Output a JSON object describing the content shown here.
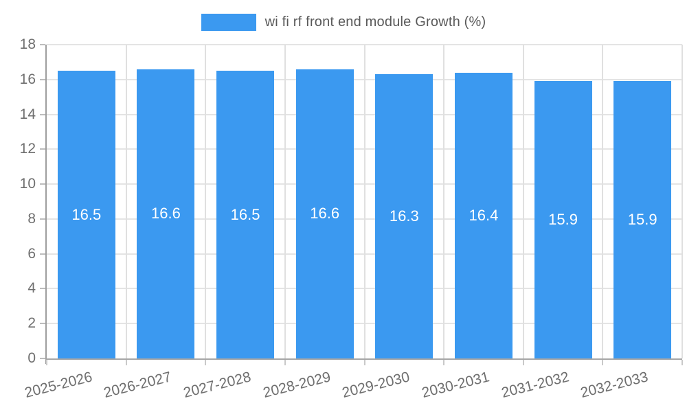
{
  "chart_data": {
    "type": "bar",
    "title": "",
    "legend": [
      "wi fi rf front end module Growth (%)"
    ],
    "legend_position": "top",
    "categories": [
      "2025-2026",
      "2026-2027",
      "2027-2028",
      "2028-2029",
      "2029-2030",
      "2030-2031",
      "2031-2032",
      "2032-2033"
    ],
    "series": [
      {
        "name": "wi fi rf front end module Growth (%)",
        "values": [
          16.5,
          16.6,
          16.5,
          16.6,
          16.3,
          16.4,
          15.9,
          15.9
        ],
        "data_labels": [
          "16.5",
          "16.6",
          "16.5",
          "16.6",
          "16.3",
          "16.4",
          "15.9",
          "15.9"
        ]
      }
    ],
    "xlabel": "",
    "ylabel": "",
    "ylim": [
      0,
      18
    ],
    "yticks": [
      0,
      2,
      4,
      6,
      8,
      10,
      12,
      14,
      16,
      18
    ],
    "grid": true,
    "colors": {
      "bar": "#3b99f0",
      "value_label": "#ffffff",
      "gridline": "#e4e4e4",
      "axis": "#a0a0a0",
      "tick_label": "#6f6f6f",
      "legend_text": "#595959",
      "background": "#ffffff"
    }
  }
}
